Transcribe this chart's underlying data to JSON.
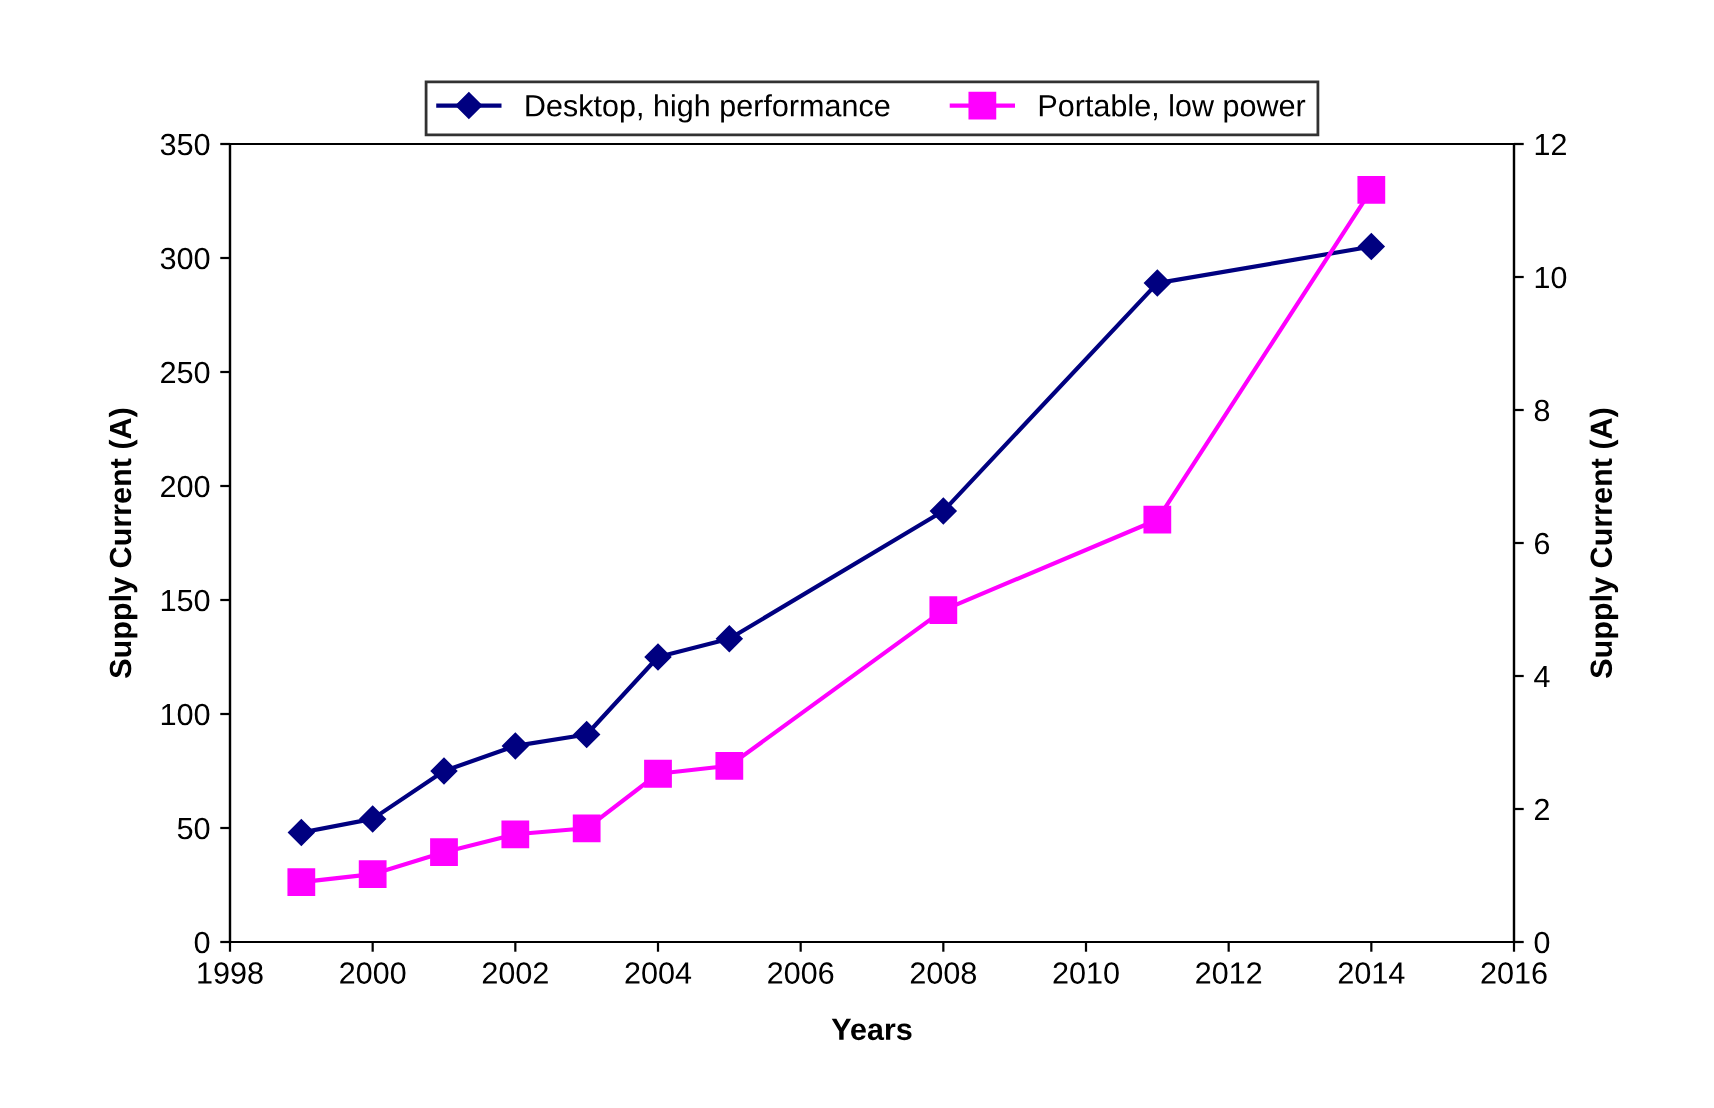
{
  "chart_data": {
    "type": "line",
    "xlabel": "Years",
    "ylabel": "Supply Current (A)",
    "y2label": "Supply Current (A)",
    "x": [
      1999,
      2000,
      2001,
      2002,
      2003,
      2004,
      2005,
      2008,
      2011,
      2014
    ],
    "series": [
      {
        "name": "Desktop, high performance",
        "color": "#000080",
        "marker": "diamond",
        "values": [
          48,
          54,
          75,
          86,
          91,
          125,
          133,
          189,
          289,
          305
        ]
      },
      {
        "name": "Portable, low power",
        "color": "#ff00ff",
        "marker": "square",
        "axis": "y2",
        "values": [
          0.9,
          1.02,
          1.35,
          1.62,
          1.71,
          2.53,
          2.65,
          4.99,
          6.35,
          11.31
        ]
      }
    ],
    "xlim": [
      1998,
      2016
    ],
    "xticks": [
      1998,
      2000,
      2002,
      2004,
      2006,
      2008,
      2010,
      2012,
      2014,
      2016
    ],
    "ylim": [
      0,
      350
    ],
    "yticks": [
      0,
      50,
      100,
      150,
      200,
      250,
      300,
      350
    ],
    "y2lim": [
      0,
      12
    ],
    "y2ticks": [
      0,
      2,
      4,
      6,
      8,
      10,
      12
    ],
    "grid": false,
    "legend": "top",
    "line_style": "solid"
  }
}
